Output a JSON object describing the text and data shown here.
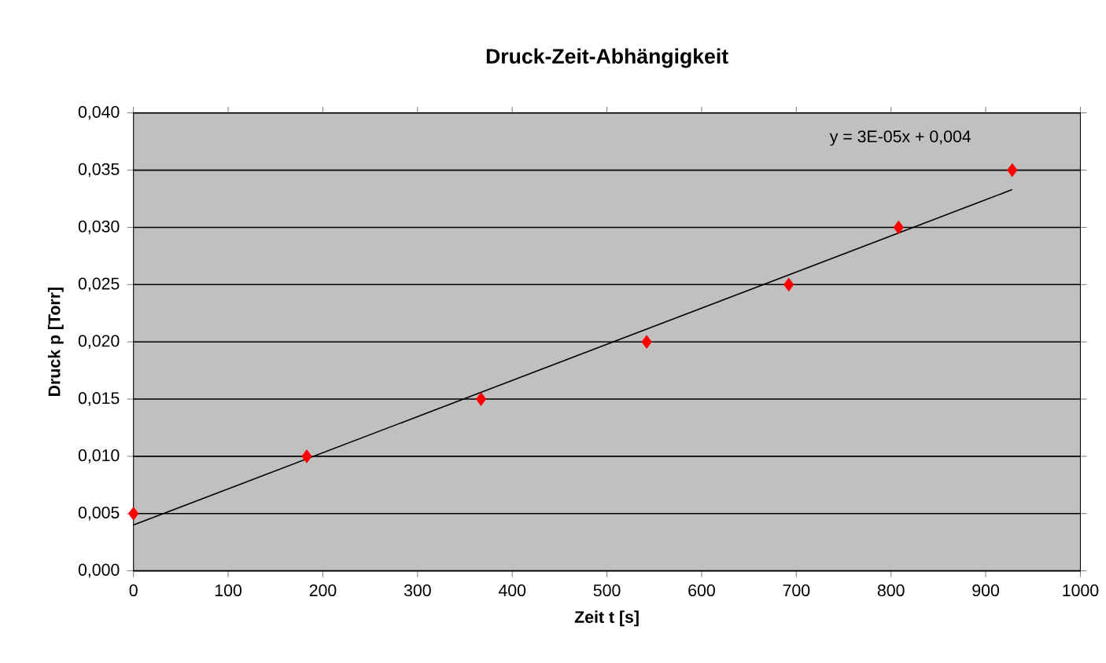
{
  "chart_data": {
    "type": "scatter",
    "title": "Druck-Zeit-Abhängigkeit",
    "xlabel": "Zeit t [s]",
    "ylabel": "Druck p [Torr]",
    "series": [
      {
        "color": "#ff0000",
        "marker": "diamond",
        "x": [
          0,
          183,
          367,
          542,
          692,
          808,
          928
        ],
        "values": [
          0.005,
          0.01,
          0.015,
          0.02,
          0.025,
          0.03,
          0.035
        ]
      },
      {
        "type": "line",
        "color": "#000000",
        "marker": "none",
        "x": [
          0,
          928
        ],
        "values": [
          0.004,
          0.0333
        ]
      }
    ],
    "xlim": [
      0,
      1000
    ],
    "xticks": [
      0,
      100,
      200,
      300,
      400,
      500,
      600,
      700,
      800,
      900,
      1000
    ],
    "ylim": [
      0,
      0.04
    ],
    "yticks": [
      {
        "value": 0,
        "label": "0,000"
      },
      {
        "value": 0.005,
        "label": "0,005"
      },
      {
        "value": 0.01,
        "label": "0,010"
      },
      {
        "value": 0.015,
        "label": "0,015"
      },
      {
        "value": 0.02,
        "label": "0,020"
      },
      {
        "value": 0.025,
        "label": "0,025"
      },
      {
        "value": 0.03,
        "label": "0,030"
      },
      {
        "value": 0.035,
        "label": "0,035"
      },
      {
        "value": 0.04,
        "label": "0,040"
      }
    ],
    "grid": "y",
    "annotations": [
      "y = 3E-05x + 0,004"
    ]
  }
}
